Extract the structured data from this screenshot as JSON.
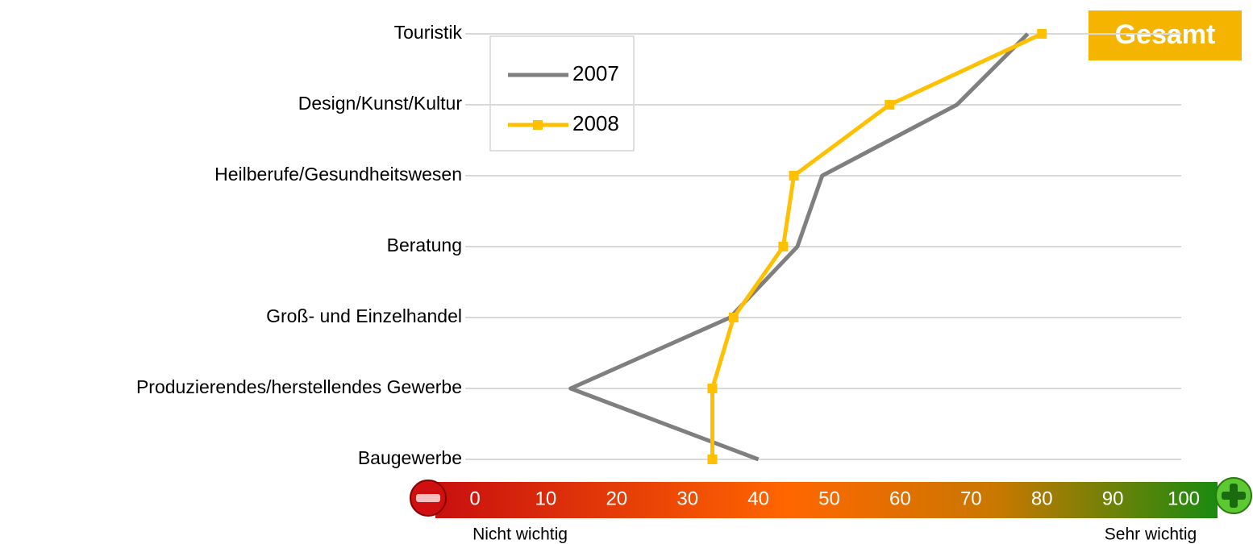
{
  "chart_data": {
    "type": "line",
    "orientation": "horizontal",
    "badge": "Gesamt",
    "categories": [
      "Touristik",
      "Design/Kunst/Kultur",
      "Heilberufe/Gesundheitswesen",
      "Beratung",
      "Groß- und Einzelhandel",
      "Produzierendes/herstellendes Gewerbe",
      "Baugewerbe"
    ],
    "series": [
      {
        "name": "2007",
        "color": "#7f7f7f",
        "marker": "none",
        "values": [
          78,
          68,
          49,
          45.5,
          36,
          13.5,
          40
        ]
      },
      {
        "name": "2008",
        "color": "#ffc000",
        "marker": "square",
        "values": [
          80,
          58.5,
          45,
          43.5,
          36.5,
          33.5,
          33.5
        ]
      }
    ],
    "xlim": [
      0,
      100
    ],
    "xticks": [
      0,
      10,
      20,
      30,
      40,
      50,
      60,
      70,
      80,
      90,
      100
    ],
    "axis_low_label": "Nicht wichtig",
    "axis_high_label": "Sehr wichtig",
    "legend": "upper left",
    "grid": true
  }
}
